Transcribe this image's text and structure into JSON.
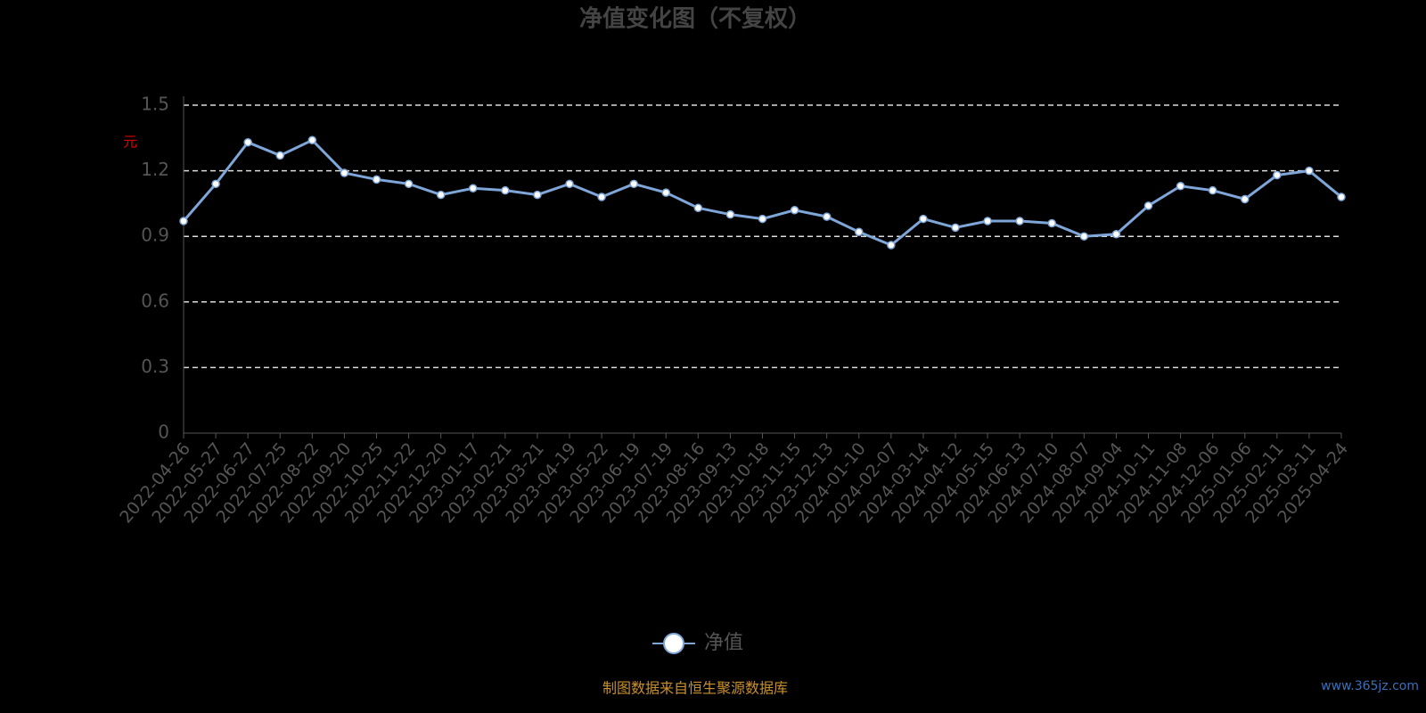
{
  "chart_data": {
    "type": "line",
    "title": "净值变化图（不复权）",
    "y_label": "元",
    "categories": [
      "2022-04-26",
      "2022-05-27",
      "2022-06-27",
      "2022-07-25",
      "2022-08-22",
      "2022-09-20",
      "2022-10-25",
      "2022-11-22",
      "2022-12-20",
      "2023-01-17",
      "2023-02-21",
      "2023-03-21",
      "2023-04-19",
      "2023-05-22",
      "2023-06-19",
      "2023-07-19",
      "2023-08-16",
      "2023-09-13",
      "2023-10-18",
      "2023-11-15",
      "2023-12-13",
      "2024-01-10",
      "2024-02-07",
      "2024-03-14",
      "2024-04-12",
      "2024-05-15",
      "2024-06-13",
      "2024-07-10",
      "2024-08-07",
      "2024-09-04",
      "2024-10-11",
      "2024-11-08",
      "2024-12-06",
      "2025-01-06",
      "2025-02-11",
      "2025-03-11",
      "2025-04-24"
    ],
    "series": [
      {
        "name": "净值",
        "color": "#7fa6d8",
        "values": [
          0.97,
          1.14,
          1.33,
          1.27,
          1.34,
          1.19,
          1.16,
          1.14,
          1.09,
          1.12,
          1.11,
          1.09,
          1.14,
          1.08,
          1.14,
          1.1,
          1.03,
          1.0,
          0.98,
          1.02,
          0.99,
          0.92,
          0.86,
          0.98,
          0.94,
          0.97,
          0.97,
          0.96,
          0.9,
          0.91,
          1.04,
          1.13,
          1.11,
          1.07,
          1.18,
          1.2,
          1.08
        ]
      }
    ],
    "ylim": [
      0,
      1.5
    ],
    "yticks": [
      0,
      0.3,
      0.6,
      0.9,
      1.2,
      1.5
    ],
    "grid": true,
    "footer": "制图数据来自恒生聚源数据库",
    "watermark": "www.365jz.com"
  }
}
